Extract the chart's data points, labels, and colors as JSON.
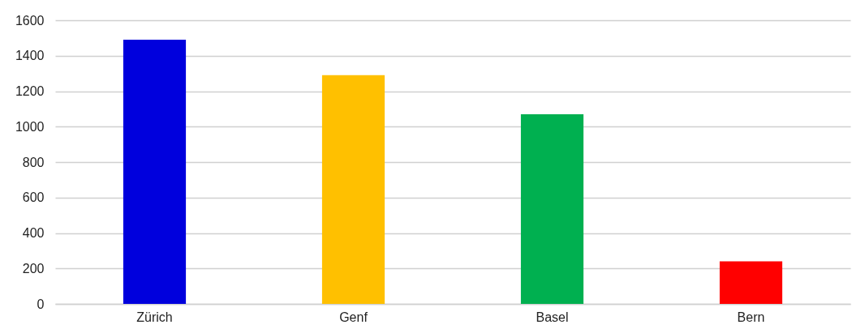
{
  "chart_data": {
    "type": "bar",
    "categories": [
      "Zürich",
      "Genf",
      "Basel",
      "Bern"
    ],
    "values": [
      1490,
      1290,
      1070,
      240
    ],
    "colors": [
      "#0000dd",
      "#ffc000",
      "#00b050",
      "#ff0000"
    ],
    "ylim": [
      0,
      1600
    ],
    "yticks": [
      0,
      200,
      400,
      600,
      800,
      1000,
      1200,
      1400,
      1600
    ],
    "grid": "y"
  }
}
